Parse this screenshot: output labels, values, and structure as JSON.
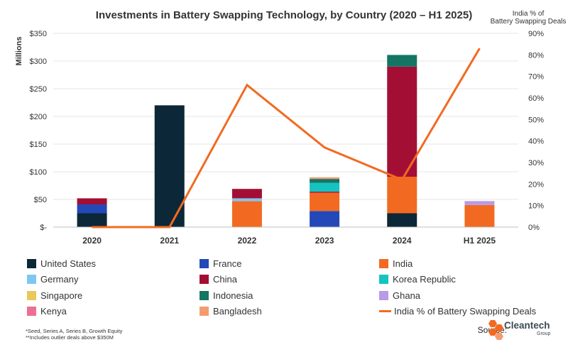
{
  "colors": {
    "United States": "#0c2737",
    "France": "#2349b8",
    "India": "#f26a21",
    "Germany": "#7fc7f3",
    "China": "#a30f34",
    "Korea Republic": "#15c3c0",
    "Singapore": "#e8c85a",
    "Indonesia": "#147565",
    "Ghana": "#b79be6",
    "Kenya": "#ee6f94",
    "Bangladesh": "#f69b6e",
    "line": "#f26a21"
  },
  "chart_data": {
    "type": "bar",
    "stacked": true,
    "title": "Investments in Battery Swapping Technology, by Country (2020 – H1 2025)",
    "ylabel": "Millions",
    "y2label": "India % of Battery Swapping Deals",
    "categories": [
      "2020",
      "2021",
      "2022",
      "2023",
      "2024",
      "H1 2025"
    ],
    "ylim": [
      0,
      350
    ],
    "yticks": [
      "$-",
      "$50",
      "$100",
      "$150",
      "$200",
      "$250",
      "$300",
      "$350"
    ],
    "y2lim": [
      0,
      90
    ],
    "y2ticks": [
      "0%",
      "10%",
      "20%",
      "30%",
      "40%",
      "50%",
      "60%",
      "70%",
      "80%",
      "90%"
    ],
    "series": [
      {
        "name": "United States",
        "values": [
          25,
          220,
          0,
          0,
          25,
          0
        ]
      },
      {
        "name": "France",
        "values": [
          16,
          0,
          0,
          29,
          0,
          0
        ]
      },
      {
        "name": "India",
        "values": [
          0,
          0,
          47,
          33,
          66,
          40
        ]
      },
      {
        "name": "Germany",
        "values": [
          0,
          0,
          5,
          0,
          0,
          0
        ]
      },
      {
        "name": "China",
        "values": [
          11,
          0,
          17,
          2,
          199,
          0
        ]
      },
      {
        "name": "Korea Republic",
        "values": [
          0,
          0,
          0,
          16,
          0,
          0
        ]
      },
      {
        "name": "Singapore",
        "values": [
          0,
          0,
          0,
          0,
          0,
          0
        ]
      },
      {
        "name": "Indonesia",
        "values": [
          0,
          0,
          0,
          7,
          21,
          0
        ]
      },
      {
        "name": "Ghana",
        "values": [
          0,
          0,
          0,
          0,
          0,
          7
        ]
      },
      {
        "name": "Kenya",
        "values": [
          0,
          0,
          0,
          0,
          0,
          0
        ]
      },
      {
        "name": "Bangladesh",
        "values": [
          0,
          0,
          0,
          3,
          0,
          0
        ]
      }
    ],
    "line_series": {
      "name": "India % of Battery Swapping Deals",
      "axis": "right",
      "values": [
        0,
        0,
        66,
        37,
        22,
        83
      ]
    },
    "legend": {
      "position": "bottom",
      "columns": 3
    }
  },
  "legend_rows": [
    [
      "United States",
      "France",
      "India"
    ],
    [
      "Germany",
      "China",
      "Korea Republic"
    ],
    [
      "Singapore",
      "Indonesia",
      "Ghana"
    ],
    [
      "Kenya",
      "Bangladesh",
      "India % of Battery Swapping Deals"
    ]
  ],
  "footnotes": [
    "*Seed, Series A, Series B, Growth Equity",
    "**Includes outlier deals above $350M"
  ],
  "source_label": "Source:",
  "logo": {
    "name": "Cleantech",
    "sub": "Group"
  }
}
